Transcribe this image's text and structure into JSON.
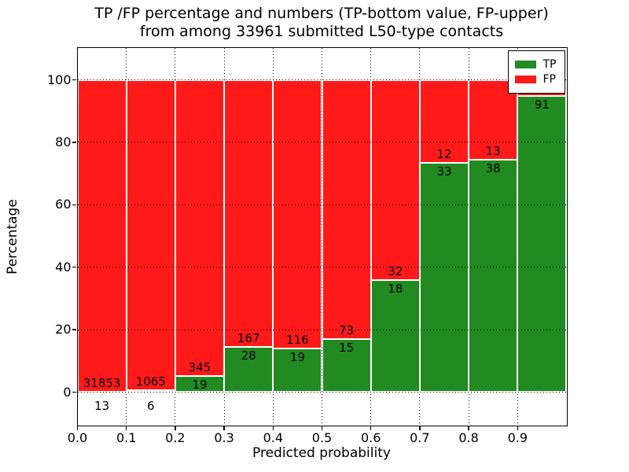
{
  "figure": {
    "title_line1": "TP /FP percentage and numbers (TP-bottom value, FP-upper)",
    "title_line2": "from among 33961 submitted L50-type contacts"
  },
  "chart_data": {
    "type": "bar",
    "subtype": "stacked_percentage_histogram",
    "title": "TP /FP percentage and numbers (TP-bottom value, FP-upper)\nfrom among 33961 submitted L50-type contacts",
    "total_submitted_contacts": 33961,
    "xlabel": "Predicted probability",
    "ylabel": "Percentage",
    "xlim": [
      0.0,
      1.0
    ],
    "ylim": [
      -11,
      110
    ],
    "grid": "dotted black, both axes, drawn over bars",
    "xticks": [
      "0.0",
      "0.1",
      "0.2",
      "0.3",
      "0.4",
      "0.5",
      "0.6",
      "0.7",
      "0.8",
      "0.9"
    ],
    "yticks": [
      0,
      20,
      40,
      60,
      80,
      100
    ],
    "legend": {
      "position": "upper right",
      "entries": [
        {
          "label": "TP",
          "color": "#218b21"
        },
        {
          "label": "FP",
          "color": "#ff1a1a"
        }
      ]
    },
    "colors": {
      "tp": "#218b21",
      "fp": "#ff1a1a"
    },
    "bins": [
      {
        "range": [
          0.0,
          0.1
        ],
        "tp_count": 13,
        "fp_count": 31853,
        "tp_pct": 0.04,
        "fp_pct": 99.96
      },
      {
        "range": [
          0.1,
          0.2
        ],
        "tp_count": 6,
        "fp_count": 1065,
        "tp_pct": 0.56,
        "fp_pct": 99.44
      },
      {
        "range": [
          0.2,
          0.3
        ],
        "tp_count": 19,
        "fp_count": 345,
        "tp_pct": 5.22,
        "fp_pct": 94.78
      },
      {
        "range": [
          0.3,
          0.4
        ],
        "tp_count": 28,
        "fp_count": 167,
        "tp_pct": 14.36,
        "fp_pct": 85.64
      },
      {
        "range": [
          0.4,
          0.5
        ],
        "tp_count": 19,
        "fp_count": 116,
        "tp_pct": 14.07,
        "fp_pct": 85.93
      },
      {
        "range": [
          0.5,
          0.6
        ],
        "tp_count": 15,
        "fp_count": 73,
        "tp_pct": 17.05,
        "fp_pct": 82.95
      },
      {
        "range": [
          0.6,
          0.7
        ],
        "tp_count": 18,
        "fp_count": 32,
        "tp_pct": 36.0,
        "fp_pct": 64.0
      },
      {
        "range": [
          0.7,
          0.8
        ],
        "tp_count": 33,
        "fp_count": 12,
        "tp_pct": 73.33,
        "fp_pct": 26.67
      },
      {
        "range": [
          0.8,
          0.9
        ],
        "tp_count": 38,
        "fp_count": 13,
        "tp_pct": 74.51,
        "fp_pct": 25.49
      },
      {
        "range": [
          0.9,
          1.0
        ],
        "tp_count": 91,
        "fp_count": null,
        "tp_pct": 94.8,
        "fp_pct": 5.2
      }
    ]
  }
}
